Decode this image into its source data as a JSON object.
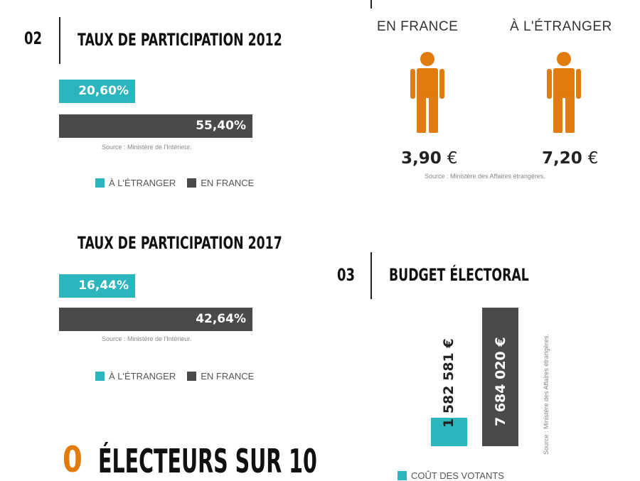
{
  "colors": {
    "teal": "#2bb5bd",
    "dark": "#4a4a4a",
    "orange": "#e07b0c"
  },
  "section1": {
    "number": "02",
    "title": "TAUX DE PARTICIPATION 2012",
    "bar_abroad_label": "20,60%",
    "bar_france_label": "55,40%",
    "source": "Source : Ministère de l'Intérieur.",
    "legend_abroad": "À L'ÉTRANGER",
    "legend_france": "EN FRANCE"
  },
  "section2": {
    "title": "TAUX DE PARTICIPATION 2017",
    "bar_abroad_label": "16,44%",
    "bar_france_label": "42,64%",
    "source": "Source : Ministère de l'Intérieur.",
    "legend_abroad": "À L'ÉTRANGER",
    "legend_france": "EN FRANCE"
  },
  "cost": {
    "col_france": "EN FRANCE",
    "col_abroad": "À L'ÉTRANGER",
    "price_france": "3,90",
    "price_abroad": "7,20",
    "currency": "€",
    "source": "Source : Ministère des Affaires étrangères.",
    "person_icon": "person-icon"
  },
  "section3": {
    "number": "03",
    "title": "BUDGET ÉLECTORAL",
    "bar1_label": "1 582 581 €",
    "bar2_label": "7 684 020 €",
    "source_vertical": "Source : Ministère des Affaires étrangères.",
    "legend": "COÛT DES VOTANTS"
  },
  "footer": {
    "big_number": "0",
    "title": "ÉLECTEURS SUR 10"
  },
  "chart_data": [
    {
      "type": "bar",
      "title": "TAUX DE PARTICIPATION 2012",
      "categories": [
        "À L'ÉTRANGER",
        "EN FRANCE"
      ],
      "values": [
        20.6,
        55.4
      ],
      "unit": "%",
      "legend": "bottom"
    },
    {
      "type": "bar",
      "title": "TAUX DE PARTICIPATION 2017",
      "categories": [
        "À L'ÉTRANGER",
        "EN FRANCE"
      ],
      "values": [
        16.44,
        42.64
      ],
      "unit": "%",
      "legend": "bottom"
    },
    {
      "type": "bar",
      "categories": [
        "EN FRANCE",
        "À L'ÉTRANGER"
      ],
      "values": [
        3.9,
        7.2
      ],
      "unit": "€"
    },
    {
      "type": "bar",
      "title": "BUDGET ÉLECTORAL",
      "categories": [
        "1 582 581 €",
        "7 684 020 €"
      ],
      "values": [
        1582581,
        7684020
      ],
      "unit": "€",
      "legend": "bottom"
    }
  ]
}
